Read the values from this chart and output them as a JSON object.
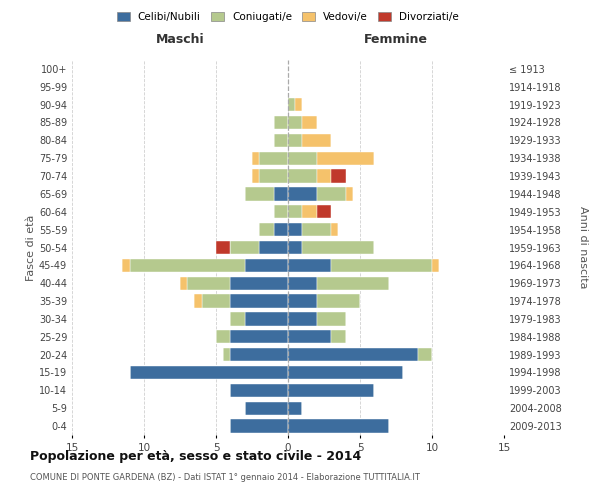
{
  "age_groups": [
    "0-4",
    "5-9",
    "10-14",
    "15-19",
    "20-24",
    "25-29",
    "30-34",
    "35-39",
    "40-44",
    "45-49",
    "50-54",
    "55-59",
    "60-64",
    "65-69",
    "70-74",
    "75-79",
    "80-84",
    "85-89",
    "90-94",
    "95-99",
    "100+"
  ],
  "birth_years": [
    "2009-2013",
    "2004-2008",
    "1999-2003",
    "1994-1998",
    "1989-1993",
    "1984-1988",
    "1979-1983",
    "1974-1978",
    "1969-1973",
    "1964-1968",
    "1959-1963",
    "1954-1958",
    "1949-1953",
    "1944-1948",
    "1939-1943",
    "1934-1938",
    "1929-1933",
    "1924-1928",
    "1919-1923",
    "1914-1918",
    "≤ 1913"
  ],
  "male": {
    "celibi": [
      4,
      3,
      4,
      11,
      4,
      4,
      3,
      4,
      4,
      3,
      2,
      1,
      0,
      1,
      0,
      0,
      0,
      0,
      0,
      0,
      0
    ],
    "coniugati": [
      0,
      0,
      0,
      0,
      0.5,
      1,
      1,
      2,
      3,
      8,
      2,
      1,
      1,
      2,
      2,
      2,
      1,
      1,
      0,
      0,
      0
    ],
    "vedovi": [
      0,
      0,
      0,
      0,
      0,
      0,
      0,
      0.5,
      0.5,
      0.5,
      0,
      0,
      0,
      0,
      0.5,
      0.5,
      0,
      0,
      0,
      0,
      0
    ],
    "divorziati": [
      0,
      0,
      0,
      0,
      0,
      0,
      0,
      0,
      0,
      0,
      1,
      0,
      0,
      0,
      0,
      0,
      0,
      0,
      0,
      0,
      0
    ]
  },
  "female": {
    "nubili": [
      7,
      1,
      6,
      8,
      9,
      3,
      2,
      2,
      2,
      3,
      1,
      1,
      0,
      2,
      0,
      0,
      0,
      0,
      0,
      0,
      0
    ],
    "coniugate": [
      0,
      0,
      0,
      0,
      1,
      1,
      2,
      3,
      5,
      7,
      5,
      2,
      1,
      2,
      2,
      2,
      1,
      1,
      0.5,
      0,
      0
    ],
    "vedove": [
      0,
      0,
      0,
      0,
      0,
      0,
      0,
      0,
      0,
      0.5,
      0,
      0.5,
      1,
      0.5,
      1,
      4,
      2,
      1,
      0.5,
      0,
      0
    ],
    "divorziate": [
      0,
      0,
      0,
      0,
      0,
      0,
      0,
      0,
      0,
      0,
      0,
      0,
      1,
      0,
      1,
      0,
      0,
      0,
      0,
      0,
      0
    ]
  },
  "colors": {
    "celibi": "#3d6d9e",
    "coniugati": "#b5c98e",
    "vedovi": "#f5c26b",
    "divorziati": "#c0392b"
  },
  "xlim": 15,
  "title": "Popolazione per età, sesso e stato civile - 2014",
  "subtitle": "COMUNE DI PONTE GARDENA (BZ) - Dati ISTAT 1° gennaio 2014 - Elaborazione TUTTITALIA.IT",
  "ylabel_left": "Fasce di età",
  "ylabel_right": "Anni di nascita",
  "xlabel_male": "Maschi",
  "xlabel_female": "Femmine",
  "bg_color": "#ffffff",
  "grid_color": "#bbbbbb"
}
